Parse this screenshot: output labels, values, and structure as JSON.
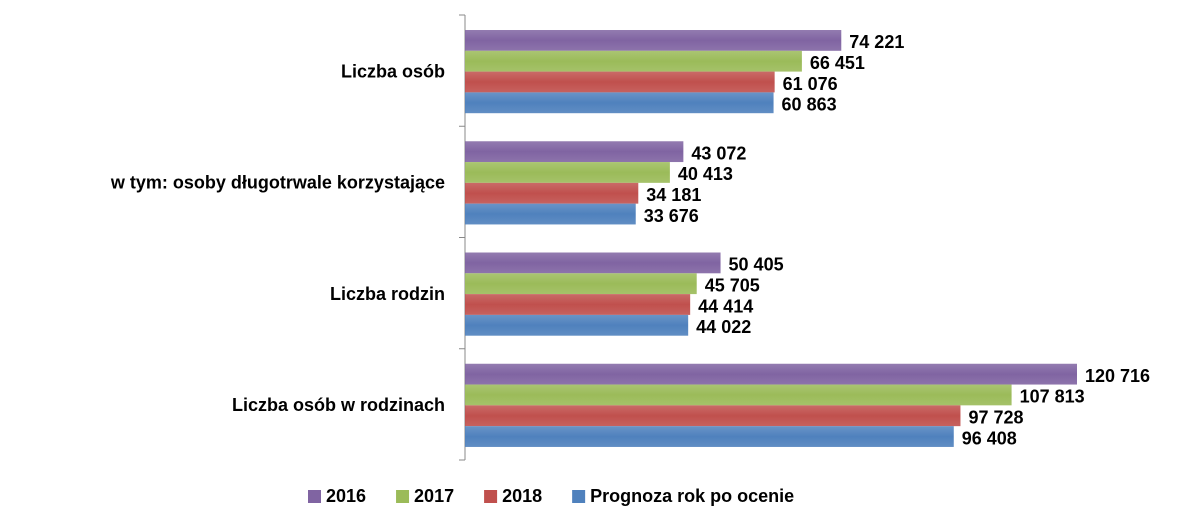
{
  "chart_data": {
    "type": "bar",
    "orientation": "horizontal",
    "categories": [
      "Liczba osób",
      "w tym: osoby długotrwale korzystające",
      "Liczba rodzin",
      "Liczba osób w rodzinach"
    ],
    "series": [
      {
        "name": "2016",
        "color": "#8064a2",
        "values": [
          74221,
          43072,
          50405,
          120716
        ],
        "value_labels": [
          "74 221",
          "43 072",
          "50 405",
          "120 716"
        ]
      },
      {
        "name": "2017",
        "color": "#9bbb59",
        "values": [
          66451,
          40413,
          45705,
          107813
        ],
        "value_labels": [
          "66 451",
          "40 413",
          "45 705",
          "107 813"
        ]
      },
      {
        "name": "2018",
        "color": "#c0504d",
        "values": [
          61076,
          34181,
          44414,
          97728
        ],
        "value_labels": [
          "61 076",
          "34 181",
          "44 414",
          "97 728"
        ]
      },
      {
        "name": "Prognoza rok po ocenie",
        "color": "#4f81bd",
        "values": [
          60863,
          33676,
          44022,
          96408
        ],
        "value_labels": [
          "60 863",
          "33 676",
          "44 022",
          "96 408"
        ]
      }
    ],
    "legend": "bottom"
  }
}
